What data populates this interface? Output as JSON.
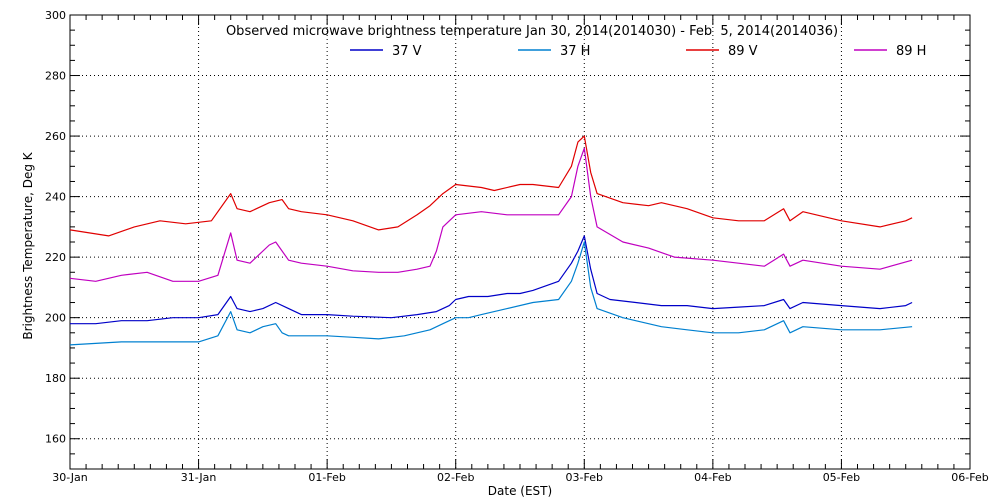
{
  "chart_data": {
    "type": "line",
    "title": "Observed microwave brightness temperature Jan 30, 2014(2014030) - Feb  5, 2014(2014036)",
    "xlabel": "Date (EST)",
    "ylabel": "Brightness Temperature, Deg K",
    "xlim": [
      0,
      7
    ],
    "ylim": [
      150,
      300
    ],
    "x_ticks": [
      {
        "x": 0,
        "label": "30-Jan"
      },
      {
        "x": 1,
        "label": "31-Jan"
      },
      {
        "x": 2,
        "label": "01-Feb"
      },
      {
        "x": 3,
        "label": "02-Feb"
      },
      {
        "x": 4,
        "label": "03-Feb"
      },
      {
        "x": 5,
        "label": "04-Feb"
      },
      {
        "x": 6,
        "label": "05-Feb"
      },
      {
        "x": 7,
        "label": "06-Feb"
      }
    ],
    "y_ticks": [
      160,
      180,
      200,
      220,
      240,
      260,
      280,
      300
    ],
    "grid": "dotted",
    "legend": "top-center",
    "series": [
      {
        "name": "37 V",
        "color": "#0000c8",
        "x": [
          0.0,
          0.2,
          0.4,
          0.6,
          0.8,
          1.0,
          1.15,
          1.25,
          1.3,
          1.4,
          1.5,
          1.6,
          1.7,
          1.8,
          2.0,
          2.2,
          2.5,
          2.7,
          2.85,
          2.95,
          3.0,
          3.1,
          3.25,
          3.4,
          3.5,
          3.6,
          3.8,
          3.9,
          3.95,
          4.0,
          4.05,
          4.1,
          4.2,
          4.4,
          4.6,
          4.8,
          5.0,
          5.2,
          5.4,
          5.55,
          5.6,
          5.7,
          6.0,
          6.3,
          6.5,
          6.55
        ],
        "y": [
          198,
          198,
          199,
          199,
          200,
          200,
          201,
          207,
          203,
          202,
          203,
          205,
          203,
          201,
          201,
          200.5,
          200,
          201,
          202,
          204,
          206,
          207,
          207,
          208,
          208,
          209,
          212,
          218,
          222,
          227,
          216,
          208,
          206,
          205,
          204,
          204,
          203,
          203.5,
          204,
          206,
          203,
          205,
          204,
          203,
          204,
          205
        ]
      },
      {
        "name": "37 H",
        "color": "#0080d0",
        "x": [
          0.0,
          0.2,
          0.4,
          0.6,
          0.8,
          1.0,
          1.15,
          1.25,
          1.3,
          1.4,
          1.5,
          1.6,
          1.65,
          1.7,
          2.0,
          2.2,
          2.4,
          2.6,
          2.8,
          2.9,
          3.0,
          3.1,
          3.2,
          3.4,
          3.6,
          3.8,
          3.9,
          3.95,
          4.0,
          4.05,
          4.1,
          4.3,
          4.4,
          4.6,
          4.8,
          5.0,
          5.2,
          5.4,
          5.55,
          5.6,
          5.7,
          6.0,
          6.3,
          6.55
        ],
        "y": [
          191,
          191.5,
          192,
          192,
          192,
          192,
          194,
          202,
          196,
          195,
          197,
          198,
          195,
          194,
          194,
          193.5,
          193,
          194,
          196,
          198,
          200,
          200,
          201,
          203,
          205,
          206,
          212,
          218,
          225,
          210,
          203,
          200,
          199,
          197,
          196,
          195,
          195,
          196,
          199,
          195,
          197,
          196,
          196,
          197
        ]
      },
      {
        "name": "89 V",
        "color": "#e00000",
        "x": [
          0.0,
          0.15,
          0.3,
          0.5,
          0.7,
          0.9,
          1.1,
          1.25,
          1.3,
          1.4,
          1.55,
          1.65,
          1.7,
          1.8,
          2.0,
          2.2,
          2.4,
          2.55,
          2.7,
          2.8,
          2.9,
          3.0,
          3.2,
          3.3,
          3.5,
          3.6,
          3.8,
          3.9,
          3.95,
          4.0,
          4.05,
          4.1,
          4.3,
          4.5,
          4.6,
          4.8,
          5.0,
          5.2,
          5.4,
          5.55,
          5.6,
          5.7,
          6.0,
          6.3,
          6.5,
          6.55
        ],
        "y": [
          229,
          228,
          227,
          230,
          232,
          231,
          232,
          241,
          236,
          235,
          238,
          239,
          236,
          235,
          234,
          232,
          229,
          230,
          234,
          237,
          241,
          244,
          243,
          242,
          244,
          244,
          243,
          250,
          258,
          260,
          248,
          241,
          238,
          237,
          238,
          236,
          233,
          232,
          232,
          236,
          232,
          235,
          232,
          230,
          232,
          233
        ]
      },
      {
        "name": "89 H",
        "color": "#c000c0",
        "x": [
          0.0,
          0.2,
          0.4,
          0.6,
          0.8,
          1.0,
          1.15,
          1.25,
          1.3,
          1.4,
          1.55,
          1.6,
          1.7,
          1.8,
          2.0,
          2.2,
          2.4,
          2.55,
          2.7,
          2.8,
          2.85,
          2.9,
          3.0,
          3.2,
          3.4,
          3.6,
          3.8,
          3.9,
          3.95,
          4.0,
          4.05,
          4.1,
          4.3,
          4.5,
          4.7,
          5.0,
          5.2,
          5.4,
          5.55,
          5.6,
          5.7,
          6.0,
          6.3,
          6.55
        ],
        "y": [
          213,
          212,
          214,
          215,
          212,
          212,
          214,
          228,
          219,
          218,
          224,
          225,
          219,
          218,
          217,
          215.5,
          215,
          215,
          216,
          217,
          222,
          230,
          234,
          235,
          234,
          234,
          234,
          240,
          250,
          256,
          240,
          230,
          225,
          223,
          220,
          219,
          218,
          217,
          221,
          217,
          219,
          217,
          216,
          219
        ]
      }
    ]
  }
}
